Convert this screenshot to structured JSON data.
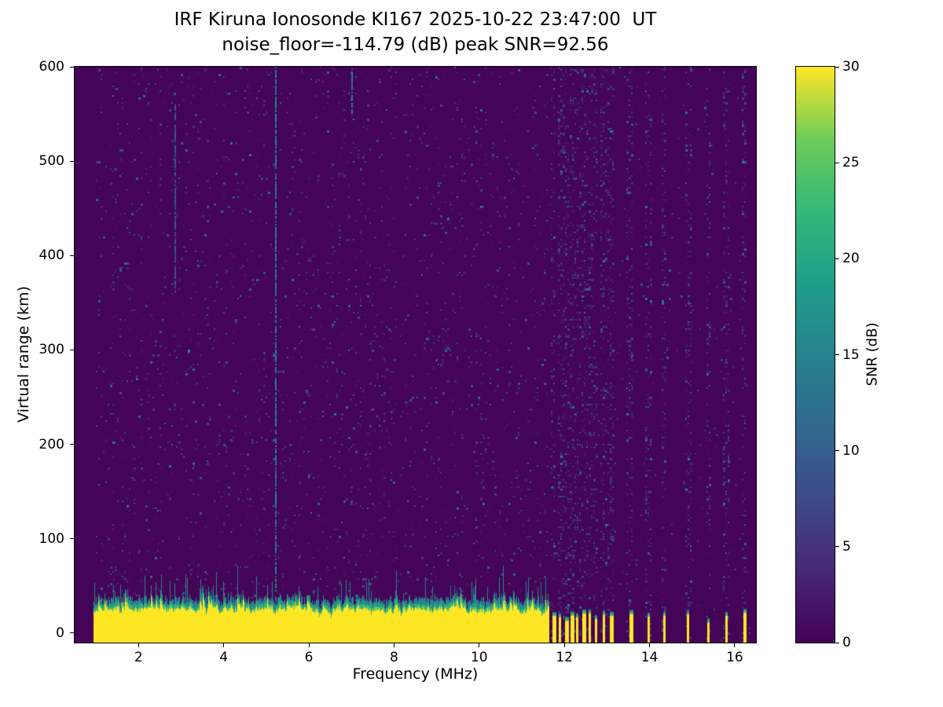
{
  "title": "IRF Kiruna Ionosonde KI167 2025-10-22 23:47:00  UT",
  "subtitle": "noise_floor=-114.79 (dB) peak SNR=92.56",
  "chart_data": {
    "type": "heatmap",
    "title": "IRF Kiruna Ionosonde KI167 2025-10-22 23:47:00  UT",
    "subtitle": "noise_floor=-114.79 (dB) peak SNR=92.56",
    "xlabel": "Frequency (MHz)",
    "ylabel": "Virtual range (km)",
    "xlim": [
      0.5,
      16.5
    ],
    "ylim": [
      -10,
      600
    ],
    "xticks": [
      2,
      4,
      6,
      8,
      10,
      12,
      14,
      16
    ],
    "yticks": [
      0,
      100,
      200,
      300,
      400,
      500,
      600
    ],
    "grid": false,
    "colorbar": {
      "label": "SNR (dB)",
      "min": 0,
      "max": 30,
      "ticks": [
        0,
        5,
        10,
        15,
        20,
        25,
        30
      ],
      "colormap": "viridis",
      "position": "right"
    },
    "colormap_stops": [
      [
        0.0,
        "#440154"
      ],
      [
        0.125,
        "#482878"
      ],
      [
        0.25,
        "#3e4a89"
      ],
      [
        0.375,
        "#31688e"
      ],
      [
        0.5,
        "#26828e"
      ],
      [
        0.625,
        "#1f9e89"
      ],
      [
        0.75,
        "#35b779"
      ],
      [
        0.875,
        "#6dcd59"
      ],
      [
        1.0,
        "#fde725"
      ]
    ],
    "heatmap": {
      "background_snr_db": 0,
      "noise_floor_db": -114.79,
      "peak_snr_db": 92.56,
      "sweep_range_mhz": [
        0.95,
        16.35
      ],
      "ground_band": {
        "freq_start_mhz": 0.95,
        "freq_end_mhz": 11.62,
        "top_km_mean": 26,
        "top_km_jitter": 12,
        "bottom_km": -10,
        "snr_db": 30
      },
      "intermittent_bars_mhz": [
        11.72,
        11.87,
        12.02,
        12.14,
        12.28,
        12.42,
        12.56,
        12.72,
        12.9,
        13.06,
        13.52,
        13.96,
        14.32,
        14.88,
        15.36,
        15.78,
        16.2
      ],
      "intermittent_bar_top_km": 20,
      "vertical_lines": [
        {
          "freq_mhz": 5.2,
          "from_km": 35,
          "to_km": 600,
          "snr_db": 14
        },
        {
          "freq_mhz": 2.85,
          "from_km": 360,
          "to_km": 560,
          "snr_db": 9
        },
        {
          "freq_mhz": 7.0,
          "from_km": 550,
          "to_km": 600,
          "snr_db": 16
        }
      ],
      "noise_speckle": {
        "density": 0.055,
        "snr_db_range": [
          1,
          15
        ]
      }
    }
  }
}
